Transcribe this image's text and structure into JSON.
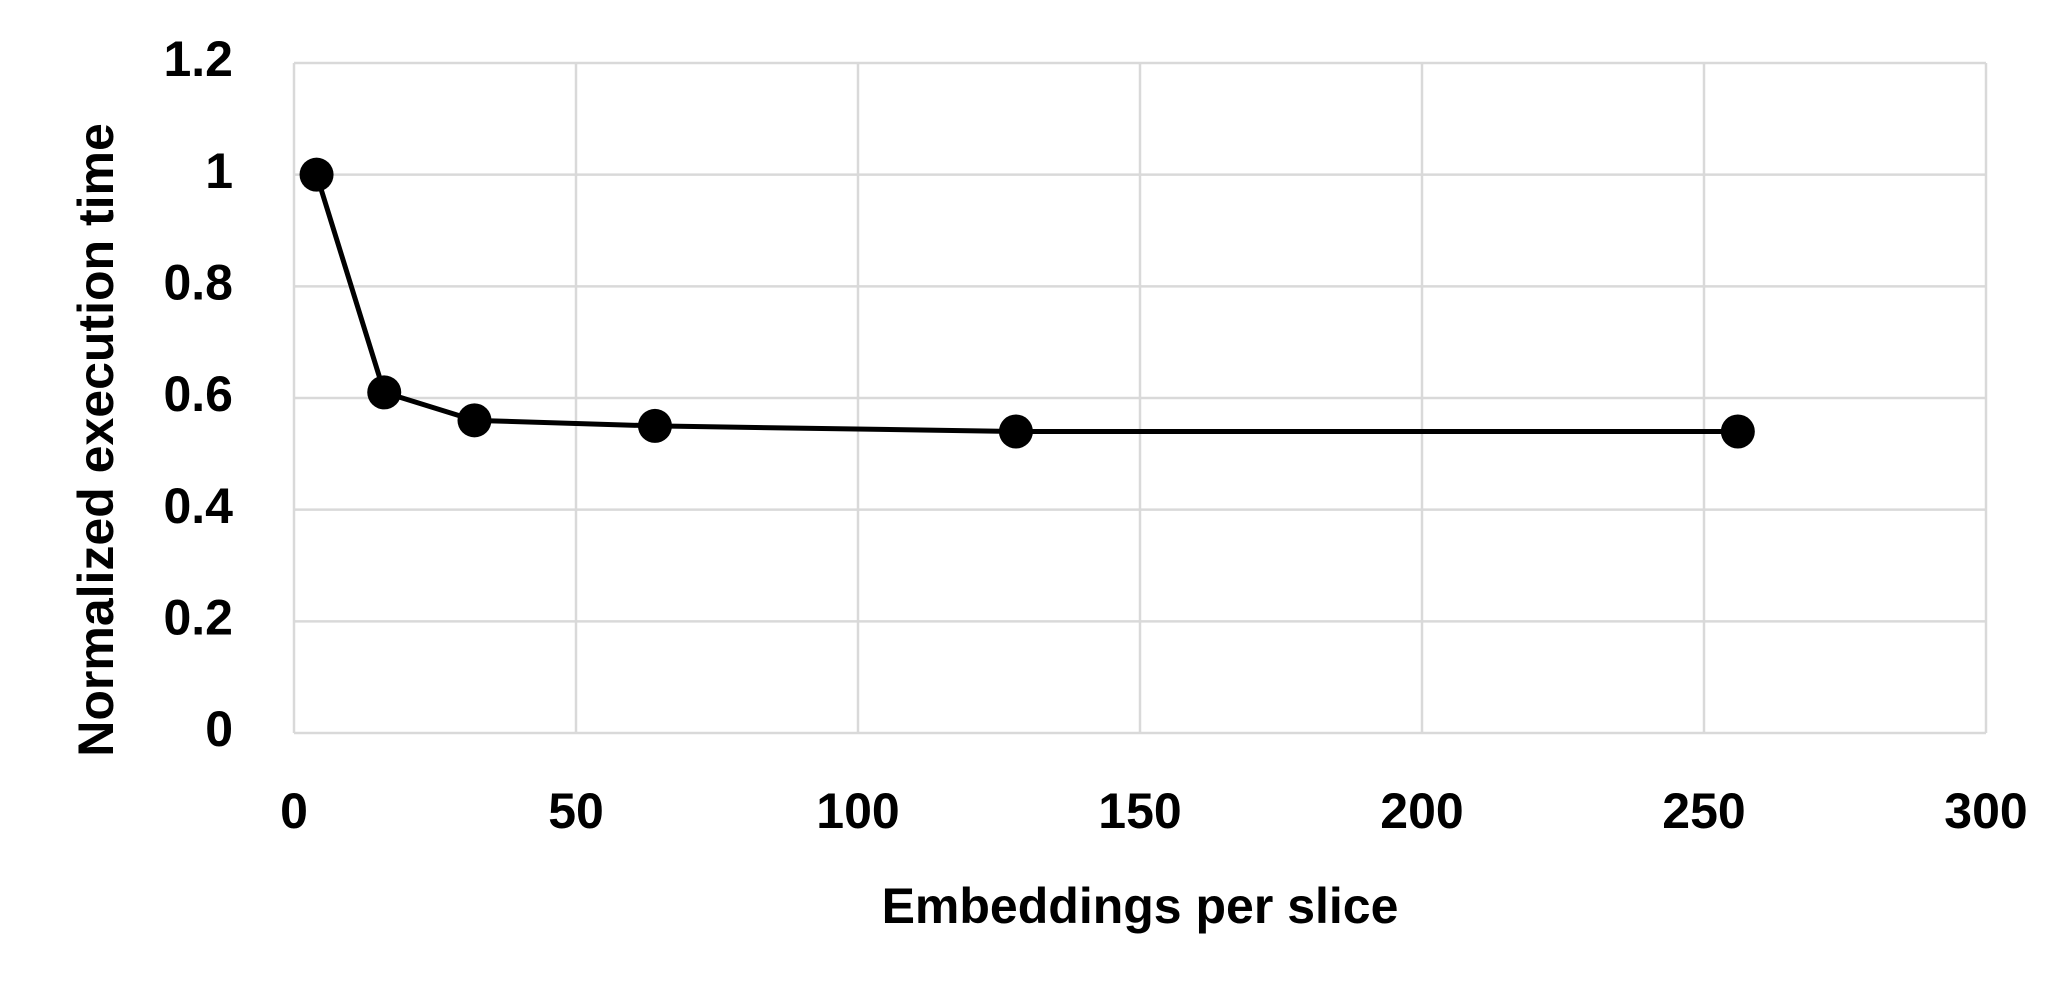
{
  "chart_data": {
    "type": "line",
    "x_label": "Embeddings per slice",
    "y_label": "Normalized execution time",
    "series": [
      {
        "name": "Normalized execution time",
        "color": "#000000",
        "x": [
          4,
          16,
          32,
          64,
          128,
          256
        ],
        "values": [
          1.0,
          0.61,
          0.56,
          0.55,
          0.54,
          0.54
        ]
      }
    ],
    "xlim": [
      0,
      300
    ],
    "xticks": [
      0,
      50,
      100,
      150,
      200,
      250,
      300
    ],
    "ylim": [
      0,
      1.2
    ],
    "yticks": [
      0,
      0.2,
      0.4,
      0.6,
      0.8,
      1,
      1.2
    ],
    "grid": true
  }
}
